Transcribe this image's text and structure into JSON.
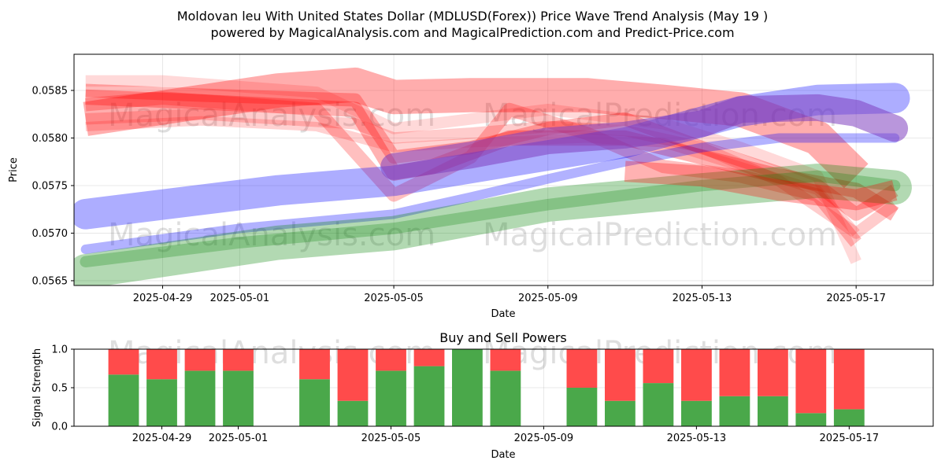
{
  "title_line1": "Moldovan leu With United States Dollar (MDLUSD(Forex)) Price Wave Trend Analysis (May 19 )",
  "title_line2": "powered by MagicalAnalysis.com and MagicalPrediction.com and Predict-Price.com",
  "watermarks": [
    "MagicalAnalysis.com",
    "MagicalPrediction.com"
  ],
  "colors": {
    "red_band": "#ff0000",
    "blue_band": "#0000ff",
    "green_band": "#008000",
    "purple_band": "#7f3fbf",
    "buy": "#4aa84a",
    "sell": "#ff4b4b"
  },
  "chart_data": [
    {
      "type": "line",
      "title": "",
      "xlabel": "Date",
      "ylabel": "Price",
      "x_range": [
        "2025-04-27",
        "2025-05-19"
      ],
      "ylim": [
        0.05645,
        0.05888
      ],
      "yticks": [
        0.0565,
        0.057,
        0.0575,
        0.058,
        0.0585
      ],
      "ytick_labels": [
        "0.0565",
        "0.0570",
        "0.0575",
        "0.0580",
        "0.0585"
      ],
      "xticks": [
        "2025-04-29",
        "2025-05-01",
        "2025-05-05",
        "2025-05-09",
        "2025-05-13",
        "2025-05-17"
      ],
      "grid": true,
      "series": [
        {
          "name": "red-wave-upper",
          "color": "red_band",
          "width": 0.00036,
          "opacity": 0.32,
          "x": [
            "2025-04-27",
            "2025-05-02",
            "2025-05-04",
            "2025-05-05",
            "2025-05-07",
            "2025-05-10",
            "2025-05-12",
            "2025-05-14",
            "2025-05-16",
            "2025-05-17"
          ],
          "values": [
            0.0582,
            0.0585,
            0.05856,
            0.05843,
            0.05845,
            0.05845,
            0.05838,
            0.0583,
            0.058,
            0.0576
          ]
        },
        {
          "name": "red-wave-1",
          "color": "red_band",
          "width": 0.00016,
          "opacity": 0.3,
          "x": [
            "2025-04-27",
            "2025-04-30",
            "2025-05-04",
            "2025-05-05",
            "2025-05-06",
            "2025-05-08",
            "2025-05-11",
            "2025-05-13",
            "2025-05-15",
            "2025-05-17",
            "2025-05-18"
          ],
          "values": [
            0.05843,
            0.05838,
            0.0583,
            0.05763,
            0.0577,
            0.058,
            0.058,
            0.0578,
            0.0576,
            0.05745,
            0.0572
          ]
        },
        {
          "name": "red-wave-2",
          "color": "red_band",
          "width": 0.00014,
          "opacity": 0.28,
          "x": [
            "2025-04-27",
            "2025-04-30",
            "2025-05-04",
            "2025-05-05",
            "2025-05-07",
            "2025-05-09",
            "2025-05-11",
            "2025-05-13",
            "2025-05-16",
            "2025-05-17",
            "2025-05-18"
          ],
          "values": [
            0.0585,
            0.05845,
            0.0584,
            0.0578,
            0.0579,
            0.0581,
            0.0582,
            0.0579,
            0.0575,
            0.0572,
            0.05745
          ]
        },
        {
          "name": "red-wave-3",
          "color": "red_band",
          "width": 0.00014,
          "opacity": 0.25,
          "x": [
            "2025-04-27",
            "2025-04-29",
            "2025-05-03",
            "2025-05-05",
            "2025-05-07",
            "2025-05-08",
            "2025-05-10",
            "2025-05-12",
            "2025-05-14",
            "2025-05-16",
            "2025-05-17"
          ],
          "values": [
            0.05835,
            0.05842,
            0.0583,
            0.0574,
            0.0578,
            0.0583,
            0.05805,
            0.0577,
            0.0576,
            0.0574,
            0.0569
          ]
        },
        {
          "name": "red-wave-4",
          "color": "red_band",
          "width": 0.00012,
          "opacity": 0.2,
          "x": [
            "2025-04-27",
            "2025-04-30",
            "2025-05-04",
            "2025-05-05",
            "2025-05-07",
            "2025-05-09",
            "2025-05-11",
            "2025-05-13",
            "2025-05-15",
            "2025-05-17",
            "2025-05-18"
          ],
          "values": [
            0.0582,
            0.05825,
            0.05815,
            0.058,
            0.05805,
            0.05812,
            0.05808,
            0.0579,
            0.05755,
            0.057,
            0.0573
          ]
        },
        {
          "name": "red-wave-5",
          "color": "red_band",
          "width": 0.00012,
          "opacity": 0.15,
          "x": [
            "2025-04-27",
            "2025-04-29",
            "2025-05-03",
            "2025-05-05",
            "2025-05-07",
            "2025-05-09",
            "2025-05-12",
            "2025-05-14",
            "2025-05-16",
            "2025-05-17"
          ],
          "values": [
            0.0586,
            0.0586,
            0.05848,
            0.0581,
            0.0582,
            0.0583,
            0.05815,
            0.0579,
            0.0576,
            0.0567
          ]
        },
        {
          "name": "red-wave-6",
          "color": "red_band",
          "width": 0.0001,
          "opacity": 0.18,
          "x": [
            "2025-04-27",
            "2025-04-30",
            "2025-05-03",
            "2025-05-05",
            "2025-05-07",
            "2025-05-10",
            "2025-05-12",
            "2025-05-14",
            "2025-05-16",
            "2025-05-17"
          ],
          "values": [
            0.05812,
            0.05818,
            0.05812,
            0.0579,
            0.05795,
            0.058,
            0.05795,
            0.0577,
            0.05745,
            0.057
          ]
        },
        {
          "name": "blue-wave-1",
          "color": "blue_band",
          "width": 0.00032,
          "opacity": 0.32,
          "x": [
            "2025-04-27",
            "2025-05-02",
            "2025-05-05",
            "2025-05-08",
            "2025-05-11",
            "2025-05-14",
            "2025-05-16",
            "2025-05-18"
          ],
          "values": [
            0.0572,
            0.05745,
            0.05755,
            0.05775,
            0.05795,
            0.05828,
            0.0584,
            0.05842
          ]
        },
        {
          "name": "blue-wave-2",
          "color": "blue_band",
          "width": 0.0001,
          "opacity": 0.3,
          "x": [
            "2025-04-27",
            "2025-05-01",
            "2025-05-05",
            "2025-05-07",
            "2025-05-09",
            "2025-05-11",
            "2025-05-13",
            "2025-05-15",
            "2025-05-17",
            "2025-05-18"
          ],
          "values": [
            0.05683,
            0.05705,
            0.0572,
            0.05738,
            0.05757,
            0.05775,
            0.0579,
            0.058,
            0.058,
            0.058
          ]
        },
        {
          "name": "purple-wave",
          "color": "purple_band",
          "width": 0.00028,
          "opacity": 0.55,
          "x": [
            "2025-05-05",
            "2025-05-07",
            "2025-05-09",
            "2025-05-11",
            "2025-05-13",
            "2025-05-14",
            "2025-05-16",
            "2025-05-17",
            "2025-05-18"
          ],
          "values": [
            0.0577,
            0.05782,
            0.05797,
            0.05803,
            0.05815,
            0.0583,
            0.05832,
            0.05826,
            0.0581
          ]
        },
        {
          "name": "green-wave-1",
          "color": "green_band",
          "width": 0.00036,
          "opacity": 0.3,
          "x": [
            "2025-04-27",
            "2025-05-02",
            "2025-05-05",
            "2025-05-09",
            "2025-05-13",
            "2025-05-16",
            "2025-05-18"
          ],
          "values": [
            0.0566,
            0.0569,
            0.057,
            0.0573,
            0.05745,
            0.05755,
            0.05748
          ]
        },
        {
          "name": "green-wave-2",
          "color": "green_band",
          "width": 0.00012,
          "opacity": 0.25,
          "x": [
            "2025-04-27",
            "2025-05-01",
            "2025-05-05",
            "2025-05-09",
            "2025-05-13",
            "2025-05-16",
            "2025-05-18"
          ],
          "values": [
            0.0567,
            0.0569,
            0.05705,
            0.0573,
            0.0575,
            0.0576,
            0.0575
          ]
        },
        {
          "name": "brown-wave",
          "color": "red_band",
          "width": 0.00022,
          "opacity": 0.3,
          "x": [
            "2025-05-11",
            "2025-05-13",
            "2025-05-15",
            "2025-05-17",
            "2025-05-18"
          ],
          "values": [
            0.05765,
            0.0576,
            0.05745,
            0.05735,
            0.05745
          ]
        }
      ]
    },
    {
      "type": "bar",
      "title": "Buy and Sell Powers",
      "xlabel": "Date",
      "ylabel": "Signal Strength",
      "ylim": [
        0,
        1
      ],
      "yticks": [
        0,
        0.5,
        1
      ],
      "ytick_labels": [
        "0.0",
        "0.5",
        "1.0"
      ],
      "x_range": [
        "2025-04-27",
        "2025-05-19"
      ],
      "xticks": [
        "2025-04-29",
        "2025-05-01",
        "2025-05-05",
        "2025-05-09",
        "2025-05-13",
        "2025-05-17"
      ],
      "grid": true,
      "categories": [
        "2025-04-28",
        "2025-04-29",
        "2025-04-30",
        "2025-05-01",
        "2025-05-03",
        "2025-05-04",
        "2025-05-05",
        "2025-05-06",
        "2025-05-07",
        "2025-05-08",
        "2025-05-10",
        "2025-05-11",
        "2025-05-12",
        "2025-05-13",
        "2025-05-14",
        "2025-05-15",
        "2025-05-16",
        "2025-05-17"
      ],
      "series": [
        {
          "name": "Buy",
          "values": [
            0.67,
            0.61,
            0.72,
            0.72,
            0.61,
            0.33,
            0.72,
            0.78,
            1.0,
            0.72,
            0.5,
            0.33,
            0.56,
            0.33,
            0.39,
            0.39,
            0.17,
            0.22
          ]
        },
        {
          "name": "Sell",
          "values": [
            0.33,
            0.39,
            0.28,
            0.28,
            0.39,
            0.67,
            0.28,
            0.22,
            0.0,
            0.28,
            0.5,
            0.67,
            0.44,
            0.67,
            0.61,
            0.61,
            0.83,
            0.78
          ]
        }
      ]
    }
  ]
}
